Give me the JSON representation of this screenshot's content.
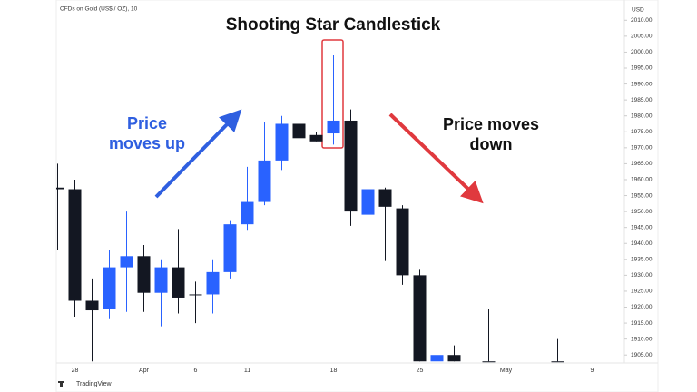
{
  "chart_data": {
    "type": "candlestick",
    "title": "Shooting Star Candlestick",
    "header": "CFDs on Gold (US$ / OZ), 10",
    "y_axis_unit": "USD",
    "logo": "TradingView",
    "annotation_left": [
      "Price",
      "moves up"
    ],
    "annotation_right": [
      "Price moves",
      "down"
    ],
    "categories": [
      null,
      "28",
      null,
      null,
      null,
      "Apr",
      null,
      null,
      "6",
      null,
      null,
      "11",
      null,
      null,
      null,
      null,
      "18",
      null,
      null,
      null,
      null,
      "25",
      null,
      null,
      null,
      null,
      "May",
      null,
      null,
      null,
      null,
      "9",
      null,
      null
    ],
    "open": [
      1957.5,
      1957,
      1922,
      1919.5,
      1932.5,
      1936,
      1924.5,
      1932.5,
      1924,
      1924,
      1931,
      1946,
      1953,
      1966,
      1977.5,
      1974,
      1974.5,
      1978.5,
      1949,
      1957,
      1951,
      1930,
      1903,
      1905,
      null,
      1903,
      null,
      null,
      null,
      1903,
      null,
      null,
      null,
      null
    ],
    "high": [
      1965,
      1960,
      1929,
      1938,
      1950,
      1939.5,
      1935,
      1944.5,
      1928,
      1935,
      1947,
      1964,
      1978,
      1980,
      1980,
      1975,
      1999,
      1982,
      1958,
      1957.5,
      1952,
      1932,
      1910,
      1908,
      null,
      1919.5,
      null,
      null,
      null,
      1910,
      null,
      null,
      null,
      null
    ],
    "low": [
      1938,
      1917,
      1903,
      1916.5,
      1918.5,
      1918.5,
      1914,
      1918,
      1915,
      1918,
      1929,
      1944,
      1952,
      1963,
      1966,
      1972,
      1971,
      1945.5,
      1938,
      1934.5,
      1927,
      1903,
      1903,
      1903,
      null,
      1903,
      null,
      null,
      null,
      1903,
      null,
      null,
      null,
      null
    ],
    "close": [
      1957,
      1922,
      1919,
      1932.5,
      1936,
      1924.5,
      1932.5,
      1923,
      1924,
      1931,
      1946,
      1953,
      1966,
      1977.5,
      1973,
      1972,
      1978.5,
      1950,
      1957,
      1951.5,
      1930,
      1903,
      1905,
      1903,
      null,
      1903,
      null,
      null,
      null,
      1903,
      null,
      null,
      null,
      null
    ],
    "up_color": "#2962ff",
    "down_color": "#131722",
    "ylim": [
      1902.5,
      2013.5
    ],
    "yticks": [
      {
        "value": 1905,
        "label": "1905.00"
      },
      {
        "value": 1910,
        "label": "1910.00"
      },
      {
        "value": 1915,
        "label": "1915.00"
      },
      {
        "value": 1920,
        "label": "1920.00"
      },
      {
        "value": 1925,
        "label": "1925.00"
      },
      {
        "value": 1930,
        "label": "1930.00"
      },
      {
        "value": 1935,
        "label": "1935.00"
      },
      {
        "value": 1940,
        "label": "1940.00"
      },
      {
        "value": 1945,
        "label": "1945.00"
      },
      {
        "value": 1950,
        "label": "1950.00"
      },
      {
        "value": 1955,
        "label": "1955.00"
      },
      {
        "value": 1960,
        "label": "1960.00"
      },
      {
        "value": 1965,
        "label": "1965.00"
      },
      {
        "value": 1970,
        "label": "1970.00"
      },
      {
        "value": 1975,
        "label": "1975.00"
      },
      {
        "value": 1980,
        "label": "1980.00"
      },
      {
        "value": 1985,
        "label": "1985.00"
      },
      {
        "value": 1990,
        "label": "1990.00"
      },
      {
        "value": 1995,
        "label": "1995.00"
      },
      {
        "value": 2000,
        "label": "2000.00"
      },
      {
        "value": 2005,
        "label": "2005.00"
      },
      {
        "value": 2010,
        "label": "2010.00"
      }
    ],
    "grid": false
  }
}
